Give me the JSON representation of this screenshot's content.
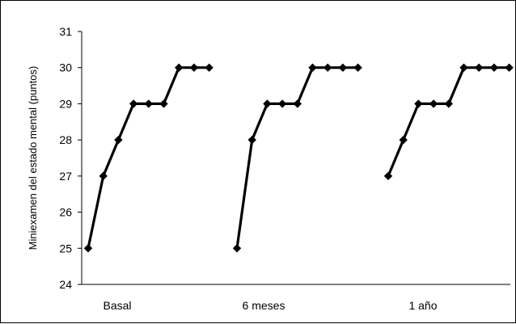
{
  "chart_data": {
    "type": "line",
    "title": "",
    "xlabel": "",
    "ylabel": "Miniexamen del estado mental (puntos)",
    "ylim": [
      24,
      31
    ],
    "yticks": [
      24,
      25,
      26,
      27,
      28,
      29,
      30,
      31
    ],
    "categories": [
      "Basal",
      "6 meses",
      "1 año"
    ],
    "grid": false,
    "legend": "none",
    "series_color": "#000000",
    "groups": [
      {
        "category": "Basal",
        "values": [
          25,
          27,
          28,
          29,
          29,
          29,
          30,
          30,
          30
        ]
      },
      {
        "category": "6 meses",
        "values": [
          25,
          28,
          29,
          29,
          29,
          30,
          30,
          30,
          30
        ]
      },
      {
        "category": "1 año",
        "values": [
          27,
          28,
          29,
          29,
          29,
          30,
          30,
          30,
          30
        ]
      }
    ]
  }
}
